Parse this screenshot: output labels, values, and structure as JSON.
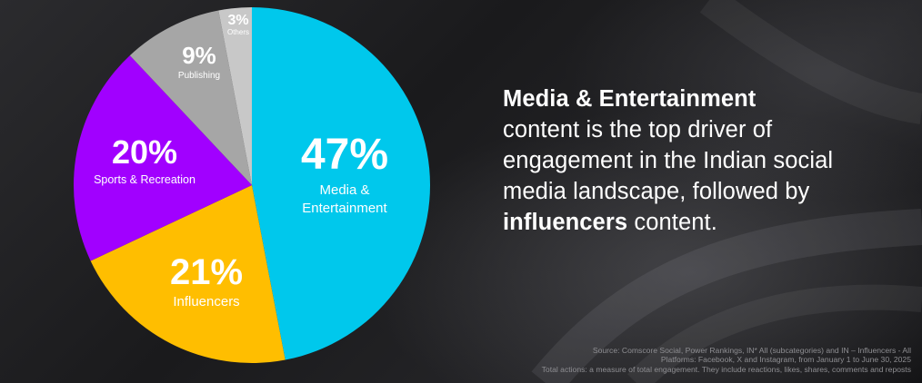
{
  "chart_data": {
    "type": "pie",
    "slices": [
      {
        "pct": "47%",
        "label_lines": [
          "Media &",
          "Entertainment"
        ],
        "value": 47,
        "color": "#00C8EC"
      },
      {
        "pct": "21%",
        "label_lines": [
          "Influencers"
        ],
        "value": 21,
        "color": "#FFBE00"
      },
      {
        "pct": "20%",
        "label_lines": [
          "Sports & Recreation"
        ],
        "value": 20,
        "color": "#A100FF"
      },
      {
        "pct": "9%",
        "label_lines": [
          "Publishing"
        ],
        "value": 9,
        "color": "#A6A6A6"
      },
      {
        "pct": "3%",
        "label_lines": [
          "Others"
        ],
        "value": 3,
        "color": "#C8C8C8"
      }
    ]
  },
  "headline": {
    "bold_1": "Media & Entertainment",
    "line_2": "content is the top driver of",
    "line_3": "engagement in the Indian social",
    "line_4": "media landscape, followed by",
    "bold_2": "influencers",
    "tail": " content."
  },
  "source": {
    "line_1": "Source: Comscore Social, Power Rankings, IN* All (subcategories) and IN – Influencers - All",
    "line_2": "Platforms: Facebook, X and Instagram, from January 1 to June 30, 2025",
    "line_3": "Total actions: a measure of total engagement. They include reactions, likes, shares, comments and reposts"
  }
}
